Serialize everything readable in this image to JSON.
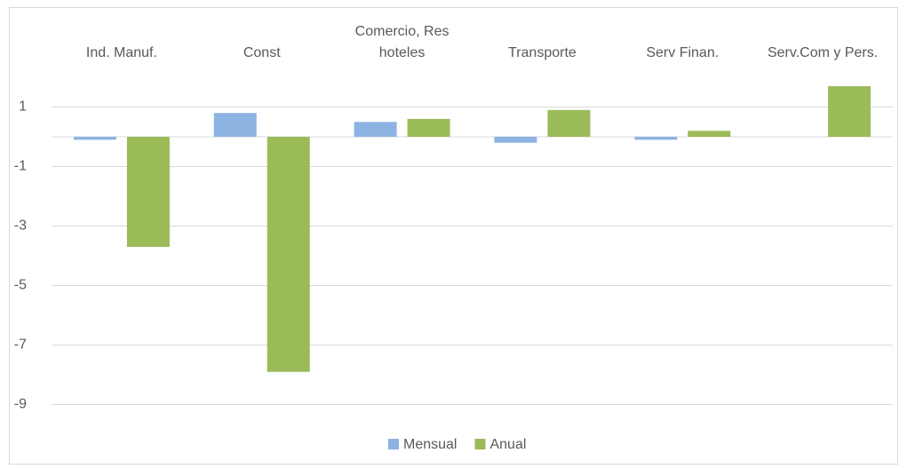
{
  "chart_data": {
    "type": "bar",
    "categories": [
      "Ind. Manuf.",
      "Const",
      "Comercio, Res hoteles",
      "Transporte",
      "Serv Finan.",
      "Serv.Com y Pers."
    ],
    "series": [
      {
        "name": "Mensual",
        "color": "#8db3e2",
        "values": [
          -0.1,
          0.8,
          0.5,
          -0.2,
          -0.1,
          null
        ]
      },
      {
        "name": "Anual",
        "color": "#9bbb59",
        "values": [
          -3.7,
          -7.9,
          0.6,
          0.9,
          0.2,
          1.7
        ]
      }
    ],
    "ylim": [
      -9,
      3
    ],
    "yticks": [
      -9,
      -7,
      -5,
      -3,
      -1,
      1
    ],
    "grid": true,
    "legend": "bottom"
  }
}
